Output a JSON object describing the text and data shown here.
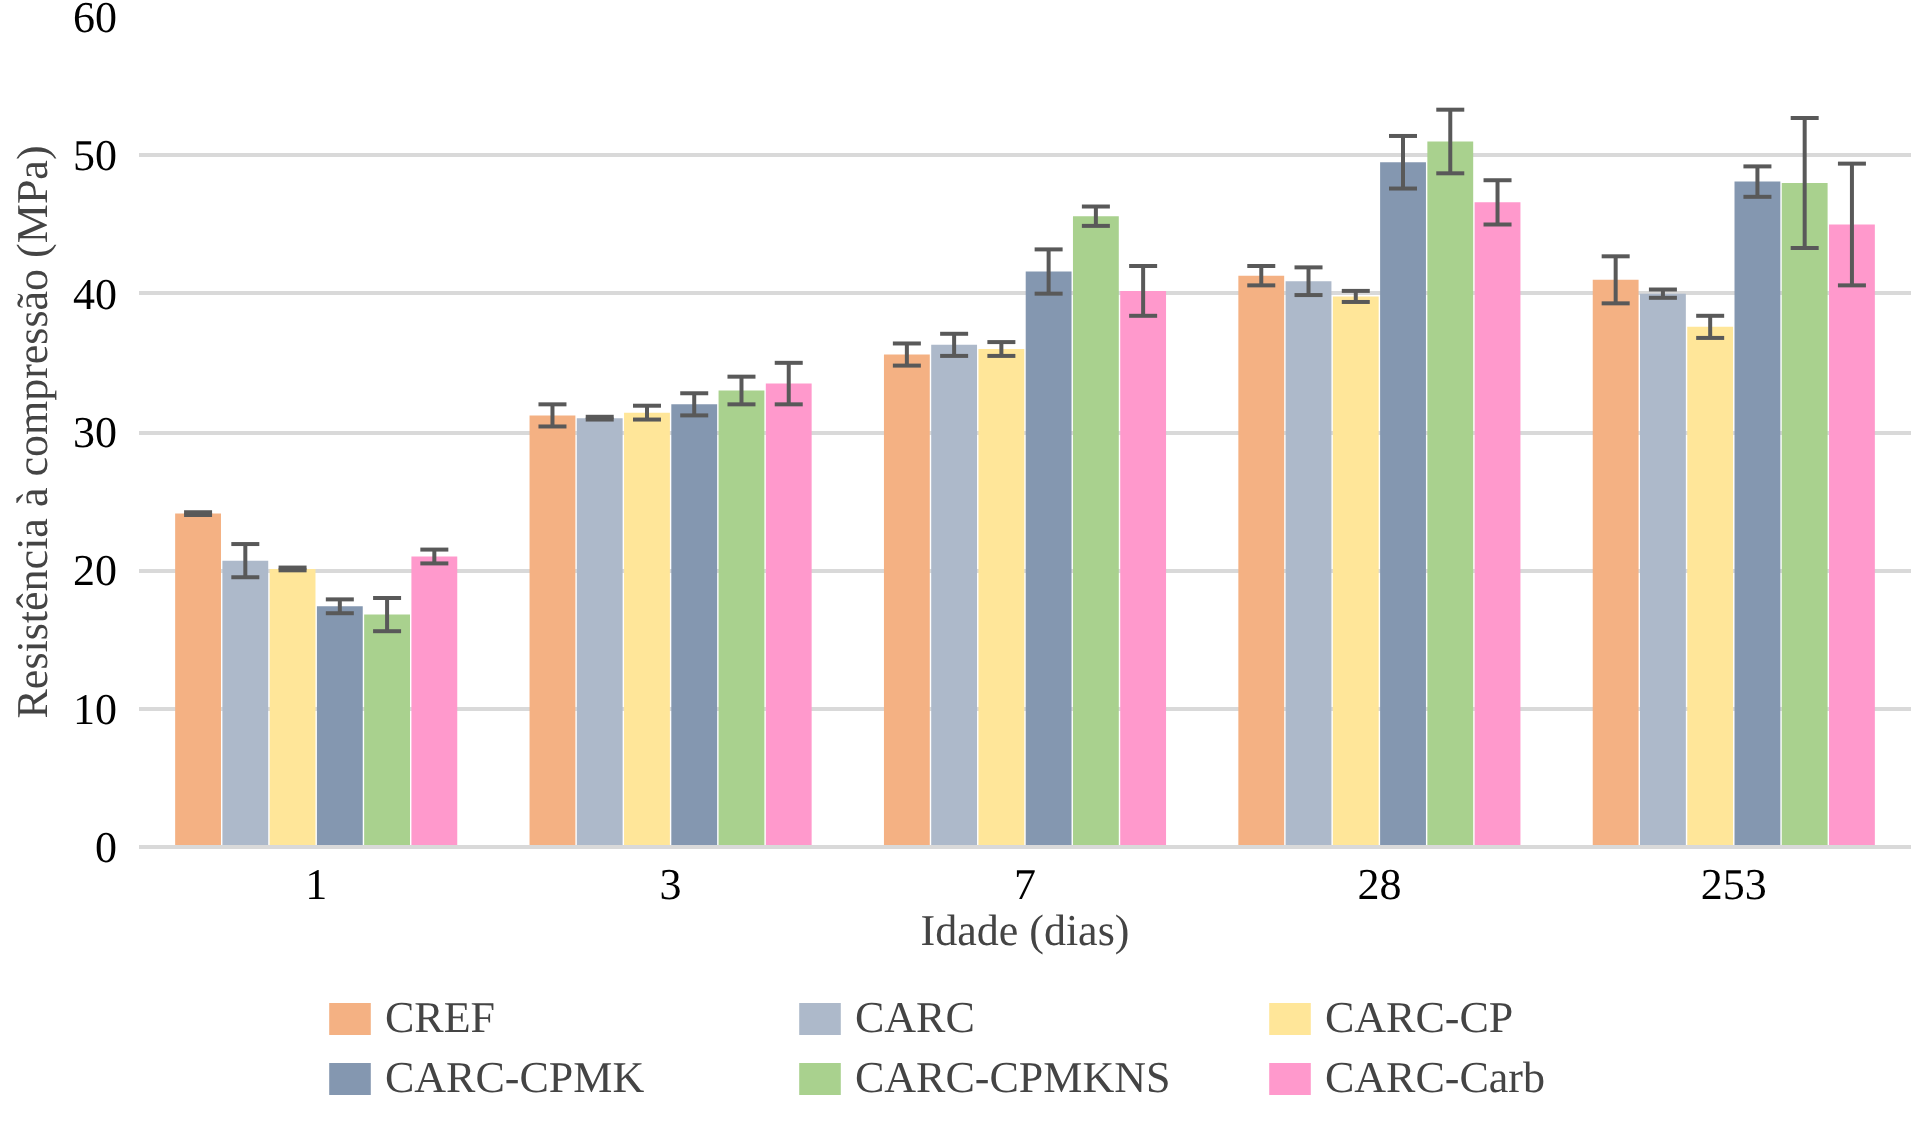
{
  "chart_data": {
    "type": "bar",
    "xlabel": "Idade (dias)",
    "ylabel": "Resistência à compressão (MPa)",
    "categories": [
      "1",
      "3",
      "7",
      "28",
      "253"
    ],
    "ylim": [
      0,
      60
    ],
    "yticks": [
      0,
      10,
      20,
      30,
      40,
      50,
      60
    ],
    "grid": "y",
    "legend": "bottom",
    "series": [
      {
        "name": "CREF",
        "color": "#f4b183",
        "values": [
          24.1,
          31.2,
          35.6,
          41.3,
          41.0
        ],
        "errors": [
          0.1,
          0.8,
          0.8,
          0.7,
          1.7
        ]
      },
      {
        "name": "CARC",
        "color": "#adb9ca",
        "values": [
          20.7,
          31.0,
          36.3,
          40.9,
          40.0
        ],
        "errors": [
          1.2,
          0.1,
          0.8,
          1.0,
          0.3
        ]
      },
      {
        "name": "CARC-CP",
        "color": "#ffe699",
        "values": [
          20.1,
          31.4,
          36.0,
          39.8,
          37.6
        ],
        "errors": [
          0.1,
          0.5,
          0.5,
          0.4,
          0.8
        ]
      },
      {
        "name": "CARC-CPMK",
        "color": "#8497b0",
        "values": [
          17.4,
          32.0,
          41.6,
          49.5,
          48.1
        ],
        "errors": [
          0.5,
          0.8,
          1.6,
          1.9,
          1.1
        ]
      },
      {
        "name": "CARC-CPMKNS",
        "color": "#a9d18e",
        "values": [
          16.8,
          33.0,
          45.6,
          51.0,
          48.0
        ],
        "errors": [
          1.2,
          1.0,
          0.7,
          2.3,
          4.7
        ]
      },
      {
        "name": "CARC-Carb",
        "color": "#ff99cc",
        "values": [
          21.0,
          33.5,
          40.2,
          46.6,
          45.0
        ],
        "errors": [
          0.5,
          1.5,
          1.8,
          1.6,
          4.4
        ]
      }
    ]
  }
}
